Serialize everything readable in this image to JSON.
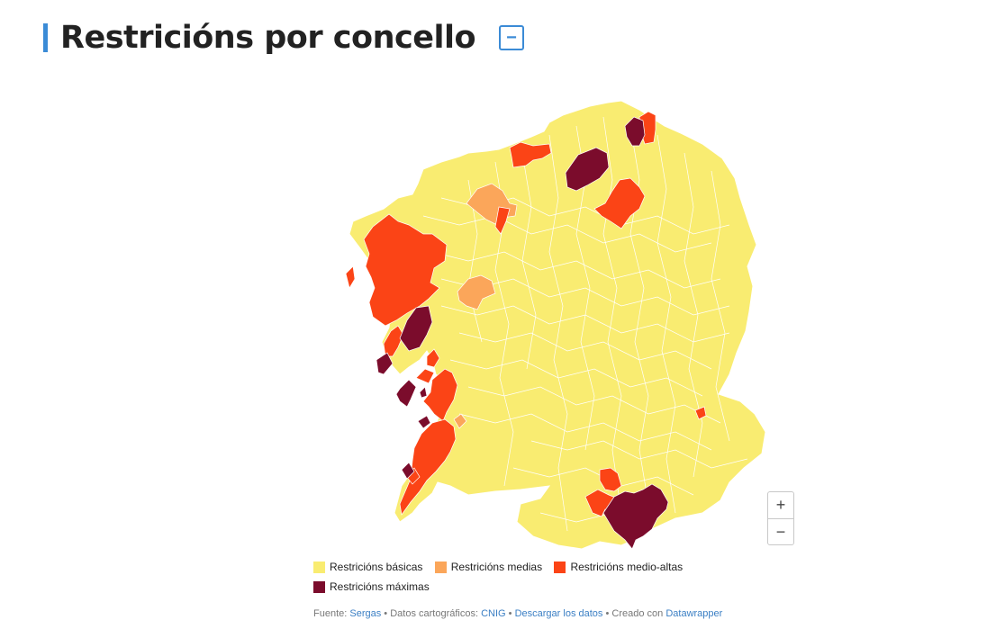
{
  "title": "Restricións por concello",
  "collapse_icon": "−",
  "zoom": {
    "in_label": "+",
    "out_label": "−"
  },
  "colors": {
    "basic": "#f9ec71",
    "medium": "#fba65a",
    "medium_high": "#fb4416",
    "maximum": "#7b0c2c",
    "accent": "#3b8bd6"
  },
  "legend": [
    {
      "label": "Restricións básicas",
      "color": "#f9ec71"
    },
    {
      "label": "Restricións medias",
      "color": "#fba65a"
    },
    {
      "label": "Restricións medio-altas",
      "color": "#fb4416"
    },
    {
      "label": "Restricións máximas",
      "color": "#7b0c2c"
    }
  ],
  "footer": {
    "source_prefix": "Fuente:",
    "source_link": "Sergas",
    "sep1": "•",
    "carto_prefix": "Datos cartográficos:",
    "carto_link": "CNIG",
    "sep2": "•",
    "download_link": "Descargar los datos",
    "sep3": "•",
    "created_prefix": "Creado con",
    "created_link": "Datawrapper"
  }
}
